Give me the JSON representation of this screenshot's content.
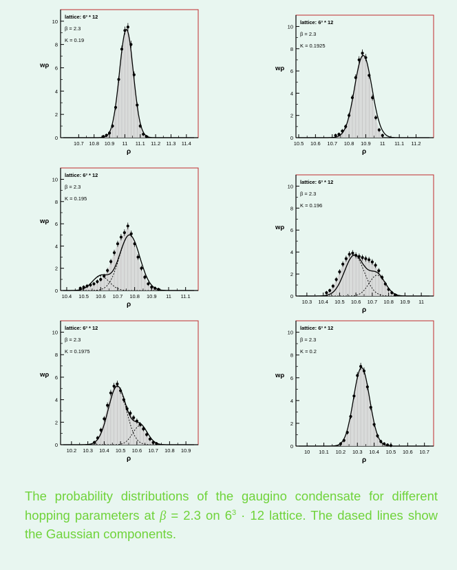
{
  "caption": {
    "part1": "The probability distributions of the gaugino condensate for different hopping parameters at ",
    "beta_symbol": "β",
    "beta_eq": " = 2.3",
    "part2": " on ",
    "lattice_base": "6",
    "lattice_exp": "3",
    "lattice_rest": " · 12",
    "part3": " lattice.  The dased lines show the Gaussian components."
  },
  "colors": {
    "background": "#e8f6f0",
    "frame": "#c0292b",
    "fill": "#d6d6d6",
    "curve": "#000000",
    "caption": "#6fd33a"
  },
  "chart_data": [
    {
      "type": "line",
      "lattice_label": "lattice: 6³ * 12",
      "beta_label": "β = 2.3",
      "kappa_label": "K = 0.19",
      "ylabel": "wρ",
      "xlabel": "ρ",
      "xlim": [
        10.6,
        11.45
      ],
      "ylim": [
        0,
        10.4
      ],
      "xticks": [
        "10.7",
        "10.8",
        "10.9",
        "11",
        "11.1",
        "11.2",
        "11.3",
        "11.4"
      ],
      "yticks": [
        "0",
        "2",
        "4",
        "6",
        "8",
        "10"
      ],
      "points_x": [
        10.86,
        10.88,
        10.9,
        10.92,
        10.94,
        10.96,
        10.98,
        11.0,
        11.02,
        11.04,
        11.06,
        11.08,
        11.1,
        11.12,
        11.14
      ],
      "points_y": [
        0.1,
        0.2,
        0.4,
        1.0,
        2.6,
        5.0,
        7.6,
        9.2,
        9.5,
        8.0,
        5.4,
        2.8,
        1.0,
        0.3,
        0.1
      ],
      "components": [
        {
          "amp": 9.3,
          "mean": 11.01,
          "sigma": 0.045
        }
      ],
      "dashed": false
    },
    {
      "type": "line",
      "lattice_label": "lattice: 6³ * 12",
      "beta_label": "β = 2.3",
      "kappa_label": "K = 0.1925",
      "ylabel": "wρ",
      "xlabel": "ρ",
      "xlim": [
        10.5,
        11.28
      ],
      "ylim": [
        0,
        10.4
      ],
      "xticks": [
        "10.5",
        "10.6",
        "10.7",
        "10.8",
        "10.9",
        "11",
        "11.1",
        "11.2"
      ],
      "yticks": [
        "0",
        "2",
        "4",
        "6",
        "8",
        "10"
      ],
      "points_x": [
        10.72,
        10.74,
        10.76,
        10.78,
        10.8,
        10.82,
        10.84,
        10.86,
        10.88,
        10.9,
        10.92,
        10.94,
        10.96,
        10.98,
        11.0
      ],
      "points_y": [
        0.2,
        0.3,
        0.6,
        1.0,
        2.0,
        3.6,
        5.4,
        7.0,
        7.6,
        7.2,
        5.6,
        3.6,
        1.8,
        0.7,
        0.2
      ],
      "components": [
        {
          "amp": 7.4,
          "mean": 10.885,
          "sigma": 0.052
        }
      ],
      "dashed": false
    },
    {
      "type": "line",
      "lattice_label": "lattice: 6³ * 12",
      "beta_label": "β = 2.3",
      "kappa_label": "K = 0.195",
      "ylabel": "wρ",
      "xlabel": "ρ",
      "xlim": [
        10.38,
        11.15
      ],
      "ylim": [
        0,
        10.4
      ],
      "xticks": [
        "10.4",
        "10.5",
        "10.6",
        "10.7",
        "10.8",
        "10.9",
        "11",
        "11.1"
      ],
      "yticks": [
        "0",
        "2",
        "4",
        "6",
        "8",
        "10"
      ],
      "points_x": [
        10.48,
        10.5,
        10.52,
        10.54,
        10.56,
        10.58,
        10.6,
        10.62,
        10.64,
        10.66,
        10.68,
        10.7,
        10.72,
        10.74,
        10.76,
        10.78,
        10.8,
        10.82,
        10.84,
        10.86,
        10.88,
        10.9,
        10.92,
        10.94
      ],
      "points_y": [
        0.2,
        0.3,
        0.4,
        0.5,
        0.6,
        0.8,
        1.0,
        1.3,
        1.8,
        2.6,
        3.4,
        4.2,
        4.8,
        5.2,
        5.8,
        5.1,
        4.2,
        3.0,
        2.0,
        1.2,
        0.6,
        0.3,
        0.2,
        0.1
      ],
      "components": [
        {
          "amp": 1.3,
          "mean": 10.6,
          "sigma": 0.05
        },
        {
          "amp": 5.0,
          "mean": 10.77,
          "sigma": 0.06
        }
      ],
      "dashed": true
    },
    {
      "type": "line",
      "lattice_label": "lattice: 6³ * 12",
      "beta_label": "β = 2.3",
      "kappa_label": "K = 0.196",
      "ylabel": "wρ",
      "xlabel": "ρ",
      "xlim": [
        10.25,
        11.05
      ],
      "ylim": [
        0,
        10.4
      ],
      "xticks": [
        "10.3",
        "10.4",
        "10.5",
        "10.6",
        "10.7",
        "10.8",
        "10.9",
        "11"
      ],
      "yticks": [
        "0",
        "2",
        "4",
        "6",
        "8",
        "10"
      ],
      "points_x": [
        10.42,
        10.44,
        10.46,
        10.48,
        10.5,
        10.52,
        10.54,
        10.56,
        10.58,
        10.6,
        10.62,
        10.64,
        10.66,
        10.68,
        10.7,
        10.72,
        10.74,
        10.76,
        10.78,
        10.8,
        10.82,
        10.84
      ],
      "points_y": [
        0.3,
        0.5,
        0.9,
        1.5,
        2.2,
        2.9,
        3.4,
        3.8,
        3.9,
        3.7,
        3.6,
        3.5,
        3.4,
        3.3,
        3.1,
        2.8,
        2.3,
        1.7,
        1.1,
        0.6,
        0.3,
        0.1
      ],
      "components": [
        {
          "amp": 3.7,
          "mean": 10.59,
          "sigma": 0.06
        },
        {
          "amp": 1.9,
          "mean": 10.73,
          "sigma": 0.05
        }
      ],
      "dashed": true
    },
    {
      "type": "line",
      "lattice_label": "lattice: 6³ * 12",
      "beta_label": "β = 2.3",
      "kappa_label": "K = 0.1975",
      "ylabel": "wρ",
      "xlabel": "ρ",
      "xlim": [
        10.15,
        10.95
      ],
      "ylim": [
        0,
        10.4
      ],
      "xticks": [
        "10.2",
        "10.3",
        "10.4",
        "10.5",
        "10.6",
        "10.7",
        "10.8",
        "10.9"
      ],
      "yticks": [
        "0",
        "2",
        "4",
        "6",
        "8",
        "10"
      ],
      "points_x": [
        10.34,
        10.36,
        10.38,
        10.4,
        10.42,
        10.44,
        10.46,
        10.48,
        10.5,
        10.52,
        10.54,
        10.56,
        10.58,
        10.6,
        10.62,
        10.64,
        10.66,
        10.68,
        10.7,
        10.72
      ],
      "points_y": [
        0.2,
        0.6,
        1.3,
        2.3,
        3.5,
        4.6,
        5.2,
        5.4,
        4.8,
        4.0,
        3.2,
        2.8,
        2.4,
        2.1,
        1.8,
        1.4,
        0.9,
        0.5,
        0.2,
        0.1
      ],
      "components": [
        {
          "amp": 5.2,
          "mean": 10.48,
          "sigma": 0.055
        },
        {
          "amp": 1.7,
          "mean": 10.62,
          "sigma": 0.045
        }
      ],
      "dashed": true
    },
    {
      "type": "line",
      "lattice_label": "lattice: 6³ * 12",
      "beta_label": "β = 2.3",
      "kappa_label": "K = 0.2",
      "ylabel": "wρ",
      "xlabel": "ρ",
      "xlim": [
        9.95,
        10.73
      ],
      "ylim": [
        0,
        10.4
      ],
      "xticks": [
        "10",
        "10.1",
        "10.2",
        "10.3",
        "10.4",
        "10.5",
        "10.6",
        "10.7"
      ],
      "yticks": [
        "0",
        "2",
        "4",
        "6",
        "8",
        "10"
      ],
      "points_x": [
        10.2,
        10.22,
        10.24,
        10.26,
        10.28,
        10.3,
        10.32,
        10.34,
        10.36,
        10.38,
        10.4,
        10.42,
        10.44,
        10.46,
        10.48,
        10.5
      ],
      "points_y": [
        0.2,
        0.5,
        1.2,
        2.6,
        4.4,
        6.2,
        7.0,
        6.6,
        5.2,
        3.4,
        1.9,
        0.9,
        0.4,
        0.2,
        0.1,
        0.05
      ],
      "components": [
        {
          "amp": 6.9,
          "mean": 10.325,
          "sigma": 0.048
        }
      ],
      "dashed": false
    }
  ]
}
